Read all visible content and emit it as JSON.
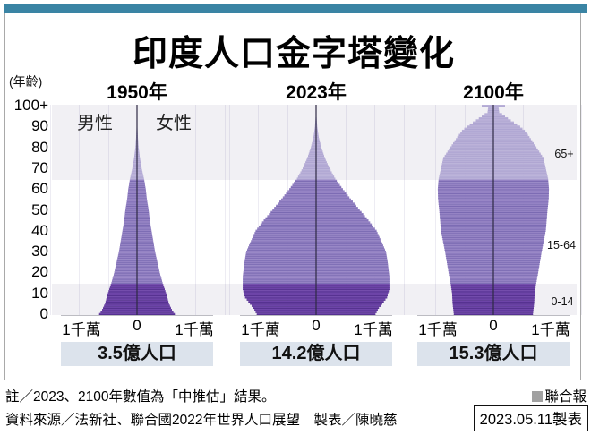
{
  "header": {
    "title": "印度人口金字塔變化"
  },
  "axis": {
    "age_axis_label": "(年齡)",
    "age_ticks": [
      "100+",
      "90",
      "80",
      "70",
      "60",
      "50",
      "40",
      "30",
      "20",
      "10",
      "0"
    ],
    "x_tick_left": "1千萬",
    "x_tick_zero": "0",
    "x_tick_right": "1千萬",
    "male_label": "男性",
    "female_label": "女性",
    "age_group_labels": {
      "old": "65+",
      "working": "15-64",
      "young": "0-14"
    }
  },
  "chart_data": {
    "type": "population-pyramid",
    "title": "印度人口金字塔變化",
    "x_unit": "1千萬 (10 million) people per single-year age cohort, per sex",
    "x_range_per_side": 1.5,
    "age_range": [
      0,
      100
    ],
    "age_group_bands": [
      {
        "label": "0-14",
        "ages": [
          0,
          14
        ],
        "background": "gray"
      },
      {
        "label": "15-64",
        "ages": [
          15,
          64
        ],
        "background": "white"
      },
      {
        "label": "65+",
        "ages": [
          65,
          100
        ],
        "background": "gray"
      }
    ],
    "pyramids": [
      {
        "year_label": "1950年",
        "population_label": "3.5億人口",
        "total_population": "3.5億",
        "half_width_control_points": [
          [
            0,
            0.65
          ],
          [
            2,
            0.6
          ],
          [
            5,
            0.55
          ],
          [
            10,
            0.5
          ],
          [
            15,
            0.44
          ],
          [
            20,
            0.39
          ],
          [
            25,
            0.35
          ],
          [
            30,
            0.31
          ],
          [
            35,
            0.28
          ],
          [
            40,
            0.25
          ],
          [
            45,
            0.22
          ],
          [
            50,
            0.2
          ],
          [
            55,
            0.17
          ],
          [
            60,
            0.15
          ],
          [
            65,
            0.12
          ],
          [
            70,
            0.08
          ],
          [
            75,
            0.05
          ],
          [
            80,
            0.028
          ],
          [
            85,
            0.015
          ],
          [
            90,
            0.007
          ],
          [
            95,
            0.003
          ],
          [
            100,
            0.001
          ]
        ]
      },
      {
        "year_label": "2023年",
        "population_label": "14.2億人口",
        "total_population": "14.2億",
        "half_width_control_points": [
          [
            0,
            1.02
          ],
          [
            3,
            1.08
          ],
          [
            8,
            1.22
          ],
          [
            12,
            1.26
          ],
          [
            18,
            1.26
          ],
          [
            25,
            1.23
          ],
          [
            30,
            1.2
          ],
          [
            35,
            1.12
          ],
          [
            40,
            1.04
          ],
          [
            45,
            0.9
          ],
          [
            50,
            0.75
          ],
          [
            55,
            0.6
          ],
          [
            60,
            0.46
          ],
          [
            65,
            0.33
          ],
          [
            70,
            0.23
          ],
          [
            75,
            0.15
          ],
          [
            80,
            0.09
          ],
          [
            85,
            0.045
          ],
          [
            90,
            0.02
          ],
          [
            95,
            0.007
          ],
          [
            100,
            0.002
          ]
        ]
      },
      {
        "year_label": "2100年",
        "population_label": "15.3億人口",
        "total_population": "15.3億",
        "half_width_control_points": [
          [
            0,
            0.68
          ],
          [
            5,
            0.7
          ],
          [
            10,
            0.71
          ],
          [
            14,
            0.73
          ],
          [
            20,
            0.77
          ],
          [
            30,
            0.83
          ],
          [
            40,
            0.9
          ],
          [
            50,
            0.93
          ],
          [
            55,
            0.95
          ],
          [
            60,
            0.955
          ],
          [
            65,
            0.94
          ],
          [
            70,
            0.9
          ],
          [
            75,
            0.86
          ],
          [
            80,
            0.74
          ],
          [
            85,
            0.62
          ],
          [
            88,
            0.54
          ],
          [
            90,
            0.46
          ],
          [
            93,
            0.3
          ],
          [
            95,
            0.2
          ],
          [
            97,
            0.1
          ],
          [
            99,
            0.09
          ],
          [
            100,
            0.2
          ]
        ]
      }
    ]
  },
  "colors": {
    "accent_bar": "#3a84a4",
    "band_bg": "#f1f0f4",
    "pop_box_bg": "#dce3ec",
    "bar_young": "#6d44a8",
    "bar_young_line": "#4b2a85",
    "bar_working": "#9583c4",
    "bar_working_line": "#7060ab",
    "bar_old": "#b9b0d8",
    "bar_old_line": "#a89fce",
    "spine": "#2e2a44",
    "brand_square": "#a1a1a1"
  },
  "footer": {
    "note": "註／2023、2100年數值為「中推估」結果。",
    "brand": "聯合報",
    "source": "資料來源／法新社、聯合國2022年世界人口展望　製表／陳曉慈",
    "date_label": "2023.05.11製表"
  }
}
